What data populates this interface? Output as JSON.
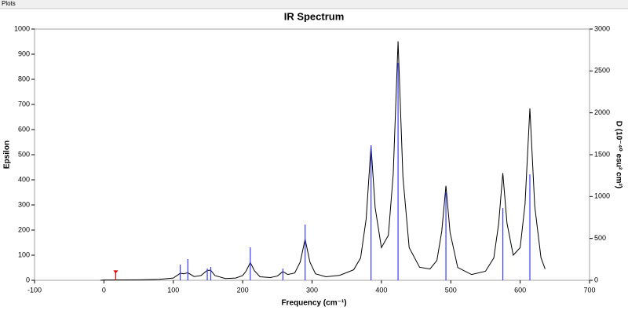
{
  "window_title": "Plots",
  "chart_data": {
    "type": "line",
    "title": "IR Spectrum",
    "x_label": "Frequency (cm⁻¹)",
    "y_label": "Epsilon",
    "y2_label": "D (10⁻⁴⁰ esu² cm²)",
    "xlim": [
      -100,
      700
    ],
    "xticks": [
      -100,
      0,
      100,
      200,
      300,
      400,
      500,
      600,
      700
    ],
    "ylim": [
      0,
      1000
    ],
    "yticks": [
      0,
      100,
      200,
      300,
      400,
      500,
      600,
      700,
      800,
      900,
      1000
    ],
    "y2lim": [
      0,
      3000
    ],
    "y2ticks": [
      0,
      500,
      1000,
      1500,
      2000,
      2500,
      3000
    ],
    "grid": false,
    "series": [
      {
        "type": "line",
        "color": "#000000",
        "x": [
          -5,
          0,
          50,
          80,
          100,
          110,
          115,
          121,
          130,
          140,
          149,
          154,
          160,
          175,
          190,
          200,
          205,
          211,
          217,
          225,
          240,
          250,
          258,
          265,
          275,
          283,
          290,
          297,
          305,
          320,
          340,
          360,
          370,
          378,
          385,
          391,
          400,
          410,
          417,
          424,
          431,
          440,
          455,
          470,
          480,
          487,
          493,
          499,
          510,
          530,
          550,
          562,
          569,
          575,
          581,
          590,
          600,
          607,
          614,
          621,
          630,
          636
        ],
        "values": [
          0,
          1,
          2,
          4,
          9,
          28,
          26,
          30,
          15,
          19,
          40,
          40,
          19,
          7,
          9,
          19,
          37,
          71,
          38,
          14,
          11,
          17,
          35,
          23,
          29,
          73,
          164,
          72,
          26,
          14,
          20,
          42,
          89,
          244,
          536,
          289,
          130,
          179,
          421,
          951,
          412,
          130,
          52,
          45,
          79,
          195,
          376,
          190,
          51,
          23,
          36,
          89,
          225,
          427,
          228,
          100,
          130,
          302,
          684,
          295,
          90,
          45
        ]
      },
      {
        "type": "stick",
        "axis": "y2",
        "color": "#3a3aff",
        "x": [
          110,
          121,
          149,
          154,
          211,
          258,
          290,
          385,
          424,
          493,
          575,
          614
        ],
        "values": [
          187,
          253,
          140,
          160,
          394,
          140,
          665,
          1612,
          2596,
          1050,
          862,
          1265
        ]
      },
      {
        "type": "stick",
        "axis": "y2",
        "color": "#e00000",
        "marker": true,
        "x": [
          17
        ],
        "values": [
          90
        ]
      }
    ]
  }
}
